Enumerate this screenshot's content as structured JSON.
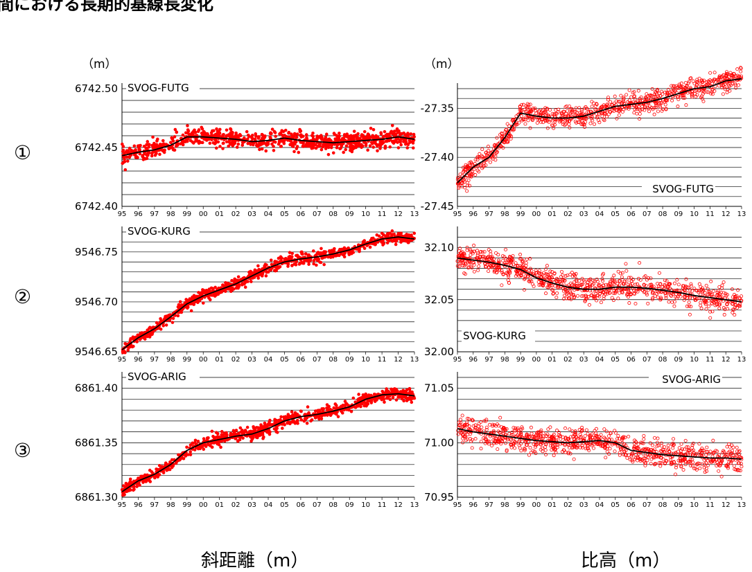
{
  "header": {
    "title_fragment": "間における長期的基線長変化"
  },
  "unit_label": "（m）",
  "row_markers": [
    "①",
    "②",
    "③"
  ],
  "footer": {
    "left": "斜距離（m）",
    "right": "比高（m）"
  },
  "colors": {
    "points": "#ff0000",
    "trend": "#000000",
    "grid": "#000000"
  },
  "year_ticks": [
    "95",
    "96",
    "97",
    "98",
    "99",
    "00",
    "01",
    "02",
    "03",
    "04",
    "05",
    "06",
    "07",
    "08",
    "09",
    "10",
    "11",
    "12",
    "13"
  ],
  "chart_data": [
    {
      "type": "scatter",
      "quantity": "slope distance",
      "title": "SVOG-FUTG",
      "ylim": [
        6742.4,
        6742.5
      ],
      "yticks": [
        "6742.50",
        "6742.45",
        "6742.40"
      ],
      "xlim": [
        1995,
        2013
      ],
      "trend": [
        [
          1995,
          6742.443
        ],
        [
          1996,
          6742.446
        ],
        [
          1997,
          6742.448
        ],
        [
          1998,
          6742.452
        ],
        [
          1999,
          6742.459
        ],
        [
          2000,
          6742.459
        ],
        [
          2001,
          6742.458
        ],
        [
          2002,
          6742.457
        ],
        [
          2003,
          6742.455
        ],
        [
          2004,
          6742.456
        ],
        [
          2005,
          6742.458
        ],
        [
          2006,
          6742.456
        ],
        [
          2007,
          6742.455
        ],
        [
          2008,
          6742.454
        ],
        [
          2009,
          6742.455
        ],
        [
          2010,
          6742.456
        ],
        [
          2011,
          6742.457
        ],
        [
          2012,
          6742.459
        ],
        [
          2013,
          6742.457
        ]
      ],
      "scatter_spread": 0.008
    },
    {
      "type": "scatter",
      "quantity": "height difference",
      "title": "SVOG-FUTG",
      "ylim": [
        -27.45,
        -27.33
      ],
      "yticks": [
        "-27.35",
        "-27.40",
        "-27.45"
      ],
      "xlim": [
        1995,
        2013
      ],
      "trend": [
        [
          1995,
          -27.426
        ],
        [
          1996,
          -27.41
        ],
        [
          1997,
          -27.4
        ],
        [
          1998,
          -27.38
        ],
        [
          1999,
          -27.355
        ],
        [
          2000,
          -27.358
        ],
        [
          2001,
          -27.36
        ],
        [
          2002,
          -27.36
        ],
        [
          2003,
          -27.358
        ],
        [
          2004,
          -27.353
        ],
        [
          2005,
          -27.348
        ],
        [
          2006,
          -27.346
        ],
        [
          2007,
          -27.344
        ],
        [
          2008,
          -27.34
        ],
        [
          2009,
          -27.335
        ],
        [
          2010,
          -27.33
        ],
        [
          2011,
          -27.328
        ],
        [
          2012,
          -27.322
        ],
        [
          2013,
          -27.32
        ]
      ],
      "scatter_spread": 0.012
    },
    {
      "type": "scatter",
      "quantity": "slope distance",
      "title": "SVOG-KURG",
      "ylim": [
        9546.65,
        9546.77
      ],
      "yticks": [
        "9546.75",
        "9546.70",
        "9546.65"
      ],
      "xlim": [
        1995,
        2013
      ],
      "trend": [
        [
          1995,
          9546.652
        ],
        [
          1996,
          9546.664
        ],
        [
          1997,
          9546.673
        ],
        [
          1998,
          9546.685
        ],
        [
          1999,
          9546.698
        ],
        [
          2000,
          9546.706
        ],
        [
          2001,
          9546.712
        ],
        [
          2002,
          9546.718
        ],
        [
          2003,
          9546.726
        ],
        [
          2004,
          9546.734
        ],
        [
          2005,
          9546.74
        ],
        [
          2006,
          9546.743
        ],
        [
          2007,
          9546.745
        ],
        [
          2008,
          9546.748
        ],
        [
          2009,
          9546.752
        ],
        [
          2010,
          9546.758
        ],
        [
          2011,
          9546.763
        ],
        [
          2012,
          9546.765
        ],
        [
          2013,
          9546.763
        ]
      ],
      "scatter_spread": 0.006
    },
    {
      "type": "scatter",
      "quantity": "height difference",
      "title": "SVOG-KURG",
      "ylim": [
        32.0,
        32.115
      ],
      "yticks": [
        "32.10",
        "32.05",
        "32.00"
      ],
      "xlim": [
        1995,
        2013
      ],
      "trend": [
        [
          1995,
          32.09
        ],
        [
          1996,
          32.088
        ],
        [
          1997,
          32.086
        ],
        [
          1998,
          32.083
        ],
        [
          1999,
          32.079
        ],
        [
          2000,
          32.071
        ],
        [
          2001,
          32.066
        ],
        [
          2002,
          32.062
        ],
        [
          2003,
          32.06
        ],
        [
          2004,
          32.06
        ],
        [
          2005,
          32.062
        ],
        [
          2006,
          32.062
        ],
        [
          2007,
          32.061
        ],
        [
          2008,
          32.059
        ],
        [
          2009,
          32.057
        ],
        [
          2010,
          32.054
        ],
        [
          2011,
          32.052
        ],
        [
          2012,
          32.05
        ],
        [
          2013,
          32.048
        ]
      ],
      "scatter_spread": 0.014
    },
    {
      "type": "scatter",
      "quantity": "slope distance",
      "title": "SVOG-ARIG",
      "ylim": [
        6861.3,
        6861.41
      ],
      "yticks": [
        "6861.40",
        "6861.35",
        "6861.30"
      ],
      "xlim": [
        1995,
        2013
      ],
      "trend": [
        [
          1995,
          6861.305
        ],
        [
          1996,
          6861.315
        ],
        [
          1997,
          6861.321
        ],
        [
          1998,
          6861.33
        ],
        [
          1999,
          6861.343
        ],
        [
          2000,
          6861.35
        ],
        [
          2001,
          6861.353
        ],
        [
          2002,
          6861.356
        ],
        [
          2003,
          6861.358
        ],
        [
          2004,
          6861.363
        ],
        [
          2005,
          6861.37
        ],
        [
          2006,
          6861.374
        ],
        [
          2007,
          6861.376
        ],
        [
          2008,
          6861.379
        ],
        [
          2009,
          6861.383
        ],
        [
          2010,
          6861.39
        ],
        [
          2011,
          6861.394
        ],
        [
          2012,
          6861.395
        ],
        [
          2013,
          6861.393
        ]
      ],
      "scatter_spread": 0.006
    },
    {
      "type": "scatter",
      "quantity": "height difference",
      "title": "SVOG-ARIG",
      "ylim": [
        70.95,
        71.06
      ],
      "yticks": [
        "71.05",
        "71.00",
        "70.95"
      ],
      "xlim": [
        1995,
        2013
      ],
      "trend": [
        [
          1995,
          71.013
        ],
        [
          1996,
          71.01
        ],
        [
          1997,
          71.008
        ],
        [
          1998,
          71.006
        ],
        [
          1999,
          71.004
        ],
        [
          2000,
          71.002
        ],
        [
          2001,
          71.001
        ],
        [
          2002,
          71.0
        ],
        [
          2003,
          71.001
        ],
        [
          2004,
          71.002
        ],
        [
          2005,
          71.0
        ],
        [
          2006,
          70.993
        ],
        [
          2007,
          70.991
        ],
        [
          2008,
          70.989
        ],
        [
          2009,
          70.988
        ],
        [
          2010,
          70.987
        ],
        [
          2011,
          70.986
        ],
        [
          2012,
          70.986
        ],
        [
          2013,
          70.985
        ]
      ],
      "scatter_spread": 0.013
    }
  ]
}
